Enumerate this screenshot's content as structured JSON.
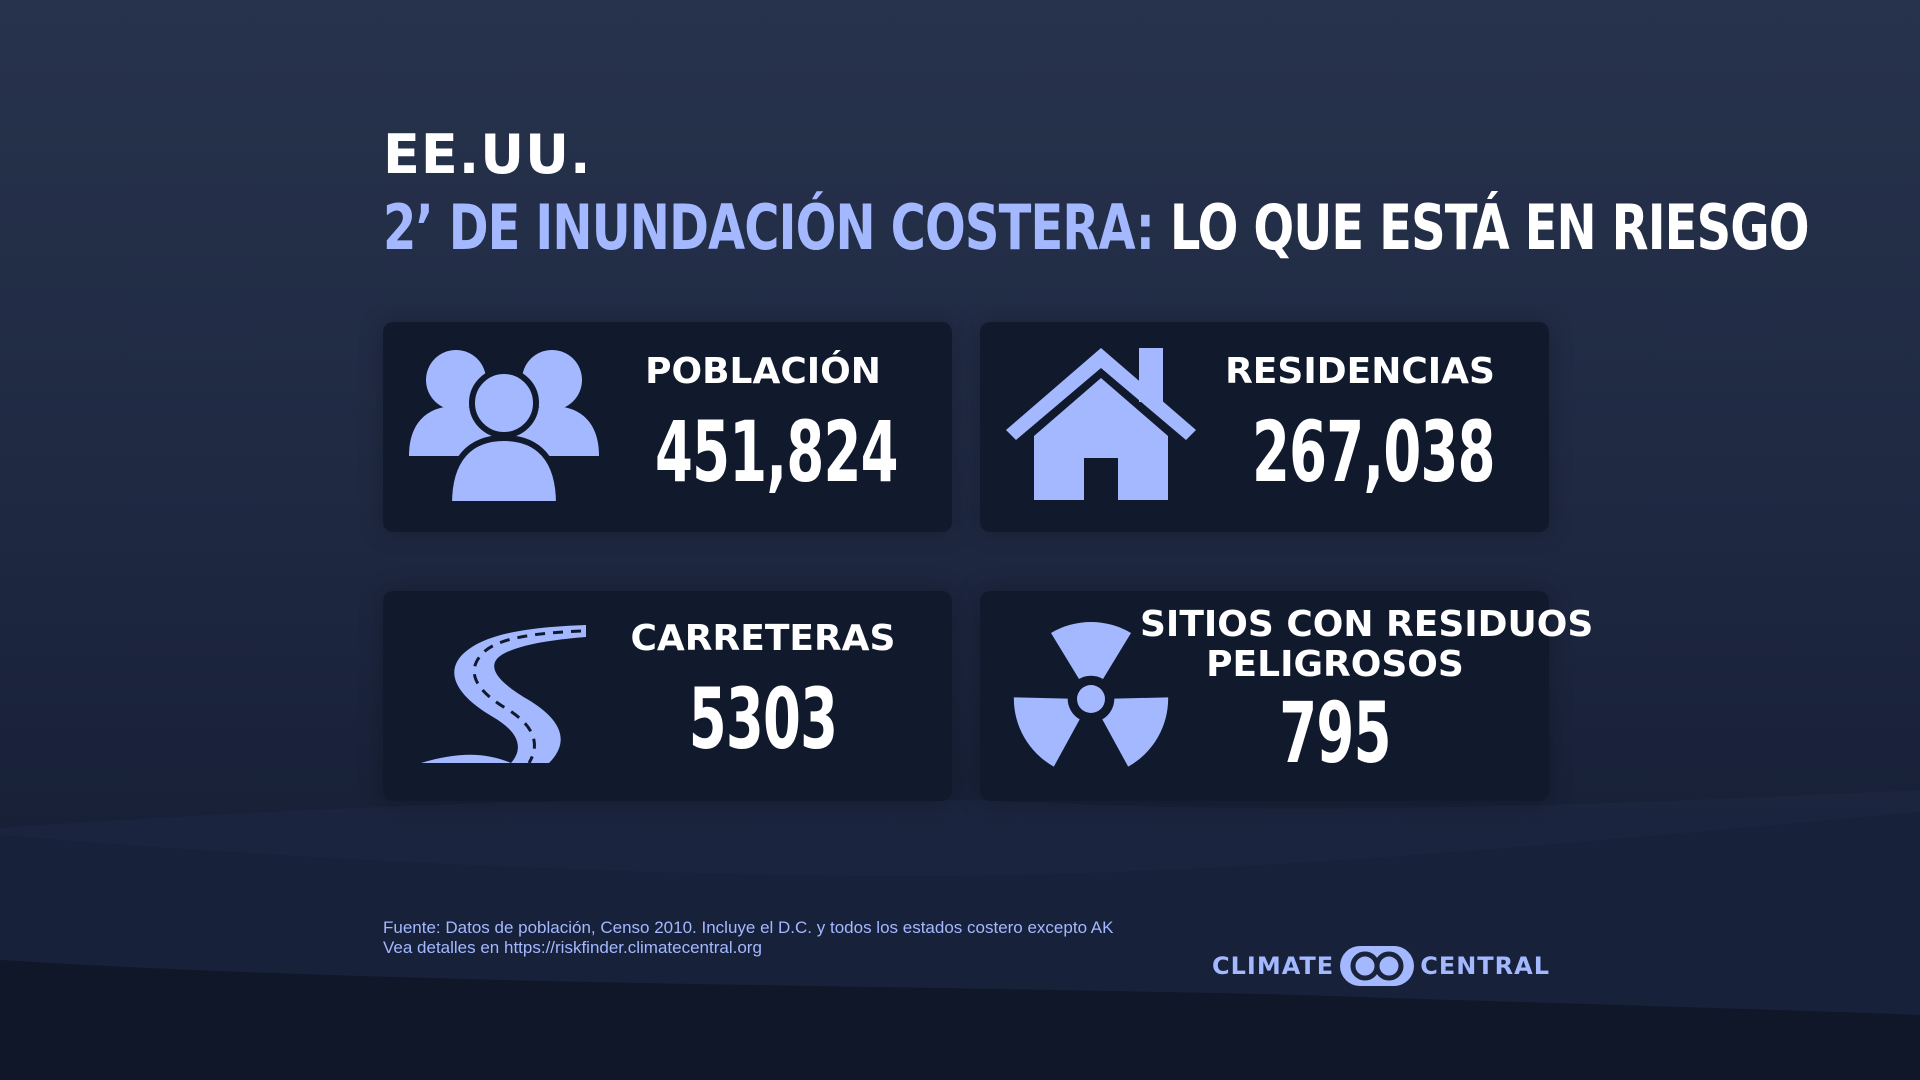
{
  "title": {
    "region": "EE.UU.",
    "accent": "2’ DE INUNDACIÓN COSTERA:",
    "rest": " LO QUE ESTÁ EN RIESGO"
  },
  "cards": [
    {
      "label": "POBLACIÓN",
      "value": "451,824",
      "icon": "people-icon"
    },
    {
      "label": "RESIDENCIAS",
      "value": "267,038",
      "icon": "house-icon"
    },
    {
      "label": "CARRETERAS",
      "value": "5303",
      "icon": "road-icon"
    },
    {
      "label_line1": "SITIOS CON RESIDUOS",
      "label_line2": "PELIGROSOS",
      "value": "795",
      "icon": "radiation-icon"
    }
  ],
  "footer": {
    "source_line1": "Fuente: Datos de población, Censo 2010. Incluye el D.C. y todos los estados costero excepto AK",
    "source_line2": "Vea detalles en https://riskfinder.climatecentral.org"
  },
  "logo": {
    "left": "CLIMATE",
    "right": "CENTRAL"
  },
  "colors": {
    "accent": "#a3b8ff",
    "card_bg": "#111a2d",
    "background": "#1f2942"
  }
}
